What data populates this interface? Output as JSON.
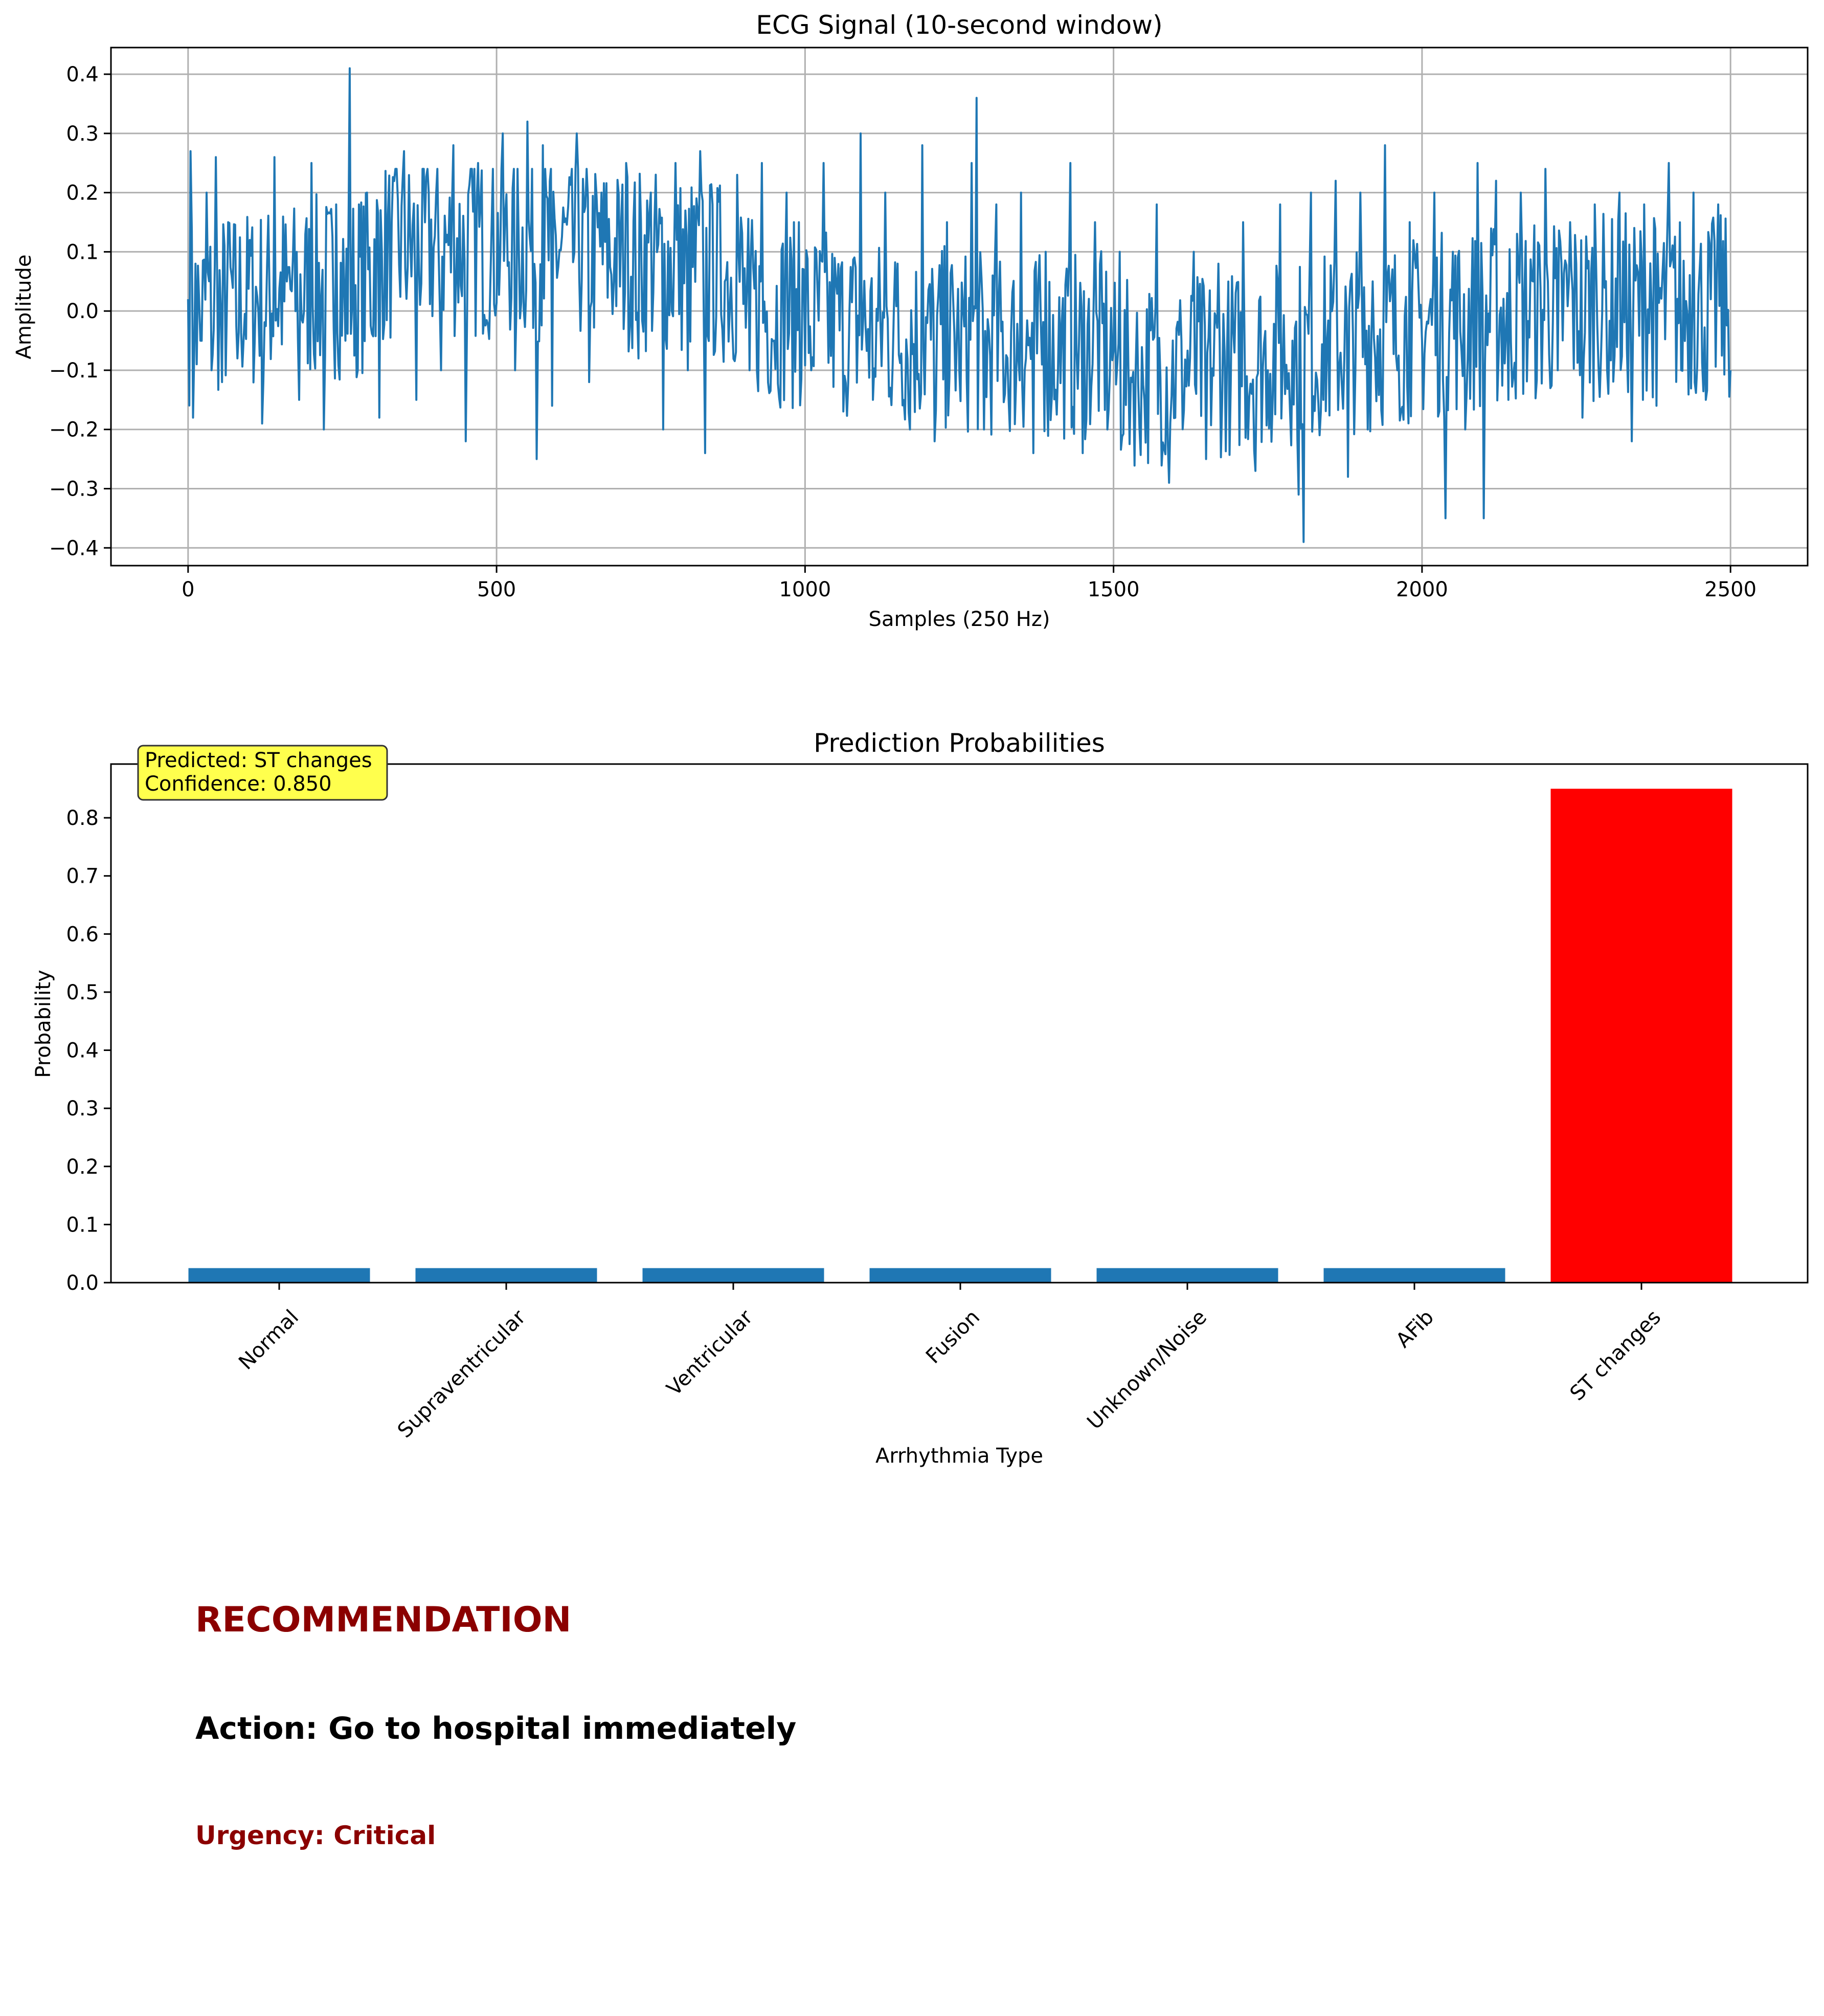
{
  "chart_data": [
    {
      "type": "line",
      "title": "ECG Signal (10-second window)",
      "xlabel": "Samples (250 Hz)",
      "ylabel": "Amplitude",
      "xlim": [
        -125,
        2625
      ],
      "ylim": [
        -0.43,
        0.445
      ],
      "xticks": [
        0,
        500,
        1000,
        1500,
        2000,
        2500
      ],
      "xtick_labels": [
        "0",
        "500",
        "1000",
        "1500",
        "2000",
        "2500"
      ],
      "yticks": [
        0.4,
        0.3,
        0.2,
        0.1,
        0.0,
        -0.1,
        -0.2,
        -0.3,
        -0.4
      ],
      "ytick_labels": [
        "0.4",
        "0.3",
        "0.2",
        "0.1",
        "0.0",
        "−0.1",
        "−0.2",
        "−0.3",
        "−0.4"
      ],
      "grid": true,
      "color": "#1f77b4",
      "series": [
        {
          "x": [
            0,
            4,
            8,
            12,
            20,
            30,
            38,
            45,
            55,
            65,
            80,
            100,
            120,
            140,
            160,
            180,
            200,
            220,
            240,
            255,
            262,
            275,
            290,
            310,
            330,
            350,
            370,
            390,
            410,
            430,
            450,
            470,
            490,
            510,
            530,
            550,
            565,
            575,
            590,
            610,
            630,
            650,
            670,
            690,
            710,
            730,
            750,
            770,
            790,
            810,
            830,
            838,
            850,
            870,
            890,
            910,
            930,
            950,
            970,
            990,
            1010,
            1030,
            1050,
            1070,
            1090,
            1110,
            1130,
            1150,
            1170,
            1190,
            1210,
            1230,
            1250,
            1270,
            1278,
            1290,
            1310,
            1330,
            1350,
            1370,
            1390,
            1410,
            1430,
            1450,
            1470,
            1490,
            1510,
            1530,
            1550,
            1570,
            1590,
            1610,
            1630,
            1650,
            1670,
            1690,
            1710,
            1730,
            1750,
            1770,
            1790,
            1800,
            1808,
            1820,
            1840,
            1860,
            1880,
            1900,
            1920,
            1940,
            1960,
            1980,
            2000,
            2020,
            2038,
            2050,
            2070,
            2090,
            2100,
            2120,
            2140,
            2160,
            2180,
            2200,
            2220,
            2240,
            2260,
            2280,
            2300,
            2320,
            2340,
            2360,
            2380,
            2400,
            2420,
            2440,
            2460,
            2480,
            2500
          ],
          "y": [
            0.02,
            0.27,
            -0.18,
            0.08,
            -0.05,
            0.2,
            -0.1,
            0.26,
            -0.12,
            0.15,
            -0.08,
            0.12,
            -0.19,
            0.26,
            0.05,
            -0.15,
            0.25,
            -0.2,
            0.18,
            -0.05,
            0.41,
            -0.1,
            0.2,
            -0.18,
            0.15,
            0.27,
            -0.15,
            0.2,
            -0.1,
            0.28,
            -0.22,
            0.25,
            0.05,
            0.3,
            -0.1,
            0.32,
            -0.25,
            0.28,
            -0.16,
            0.15,
            0.3,
            -0.12,
            0.2,
            0.05,
            0.25,
            -0.08,
            0.2,
            -0.2,
            0.25,
            -0.1,
            0.27,
            -0.24,
            0.18,
            0.05,
            0.23,
            -0.1,
            0.25,
            -0.05,
            0.2,
            0.15,
            -0.1,
            0.25,
            0.05,
            -0.12,
            0.3,
            -0.15,
            0.2,
            0.08,
            -0.2,
            0.28,
            -0.22,
            0.15,
            -0.1,
            0.25,
            0.36,
            -0.2,
            0.18,
            -0.15,
            0.2,
            -0.24,
            0.1,
            -0.1,
            0.25,
            -0.24,
            0.15,
            -0.2,
            0.1,
            -0.12,
            -0.15,
            0.18,
            -0.29,
            -0.05,
            0.1,
            -0.25,
            0.08,
            -0.12,
            0.15,
            -0.27,
            -0.1,
            0.18,
            -0.05,
            -0.31,
            -0.39,
            0.2,
            -0.15,
            0.22,
            -0.28,
            0.2,
            0.05,
            0.28,
            -0.1,
            0.15,
            -0.05,
            0.2,
            -0.35,
            0.1,
            -0.2,
            0.25,
            -0.35,
            0.22,
            -0.15,
            0.2,
            0.05,
            0.24,
            -0.1,
            0.15,
            -0.18,
            0.18,
            -0.1,
            0.2,
            -0.22,
            0.18,
            -0.16,
            0.25,
            -0.1,
            0.2,
            -0.15,
            0.18,
            -0.1
          ]
        }
      ]
    },
    {
      "type": "bar",
      "title": "Prediction Probabilities",
      "xlabel": "Arrhythmia Type",
      "ylabel": "Probability",
      "categories": [
        "Normal",
        "Supraventricular",
        "Ventricular",
        "Fusion",
        "Unknown/Noise",
        "AFib",
        "ST changes"
      ],
      "values": [
        0.025,
        0.025,
        0.025,
        0.025,
        0.025,
        0.025,
        0.85
      ],
      "bar_colors": [
        "#1f77b4",
        "#1f77b4",
        "#1f77b4",
        "#1f77b4",
        "#1f77b4",
        "#1f77b4",
        "#ff0000"
      ],
      "ylim": [
        0,
        0.8925
      ],
      "yticks": [
        0.0,
        0.1,
        0.2,
        0.3,
        0.4,
        0.5,
        0.6,
        0.7,
        0.8
      ],
      "ytick_labels": [
        "0.0",
        "0.1",
        "0.2",
        "0.3",
        "0.4",
        "0.5",
        "0.6",
        "0.7",
        "0.8"
      ],
      "grid": false,
      "annotation": {
        "lines": [
          "Predicted: ST changes",
          "Confidence: 0.850"
        ],
        "box_color": "#ffff4d",
        "placement": "top-left"
      }
    }
  ],
  "recommendation": {
    "title": "RECOMMENDATION",
    "action": "Action: Go to hospital immediately",
    "urgency": "Urgency: Critical",
    "title_color": "#8b0000",
    "urgency_color": "#8b0000"
  }
}
